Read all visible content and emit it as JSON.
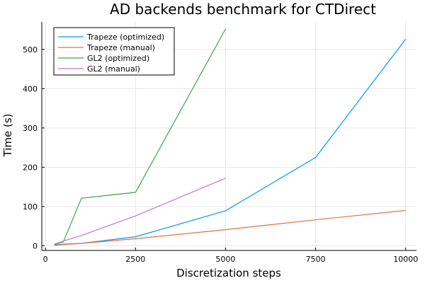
{
  "chart_data": {
    "type": "line",
    "title": "AD backends benchmark for CTDirect",
    "xlabel": "Discretization steps",
    "ylabel": "Time (s)",
    "xlim": [
      -100,
      10300
    ],
    "ylim": [
      -12,
      570
    ],
    "xticks": [
      0,
      2500,
      5000,
      7500,
      10000
    ],
    "yticks": [
      0,
      100,
      200,
      300,
      400,
      500
    ],
    "grid": true,
    "legend_position": "top-left",
    "series": [
      {
        "name": "Trapeze (optimized)",
        "color": "#009AFA",
        "x": [
          250,
          500,
          1000,
          2500,
          5000,
          7500,
          10000
        ],
        "y": [
          2,
          4,
          6,
          23,
          89,
          225,
          526
        ]
      },
      {
        "name": "Trapeze (manual)",
        "color": "#E36F47",
        "x": [
          250,
          500,
          1000,
          2500,
          5000,
          7500,
          10000
        ],
        "y": [
          1,
          3,
          6,
          18,
          41,
          66,
          90
        ]
      },
      {
        "name": "GL2 (optimized)",
        "color": "#3EA44E",
        "x": [
          250,
          500,
          1000,
          2500,
          5000
        ],
        "y": [
          3,
          10,
          121,
          136,
          552
        ]
      },
      {
        "name": "GL2 (manual)",
        "color": "#C371D2",
        "x": [
          250,
          500,
          1000,
          2500,
          5000
        ],
        "y": [
          4,
          12,
          26,
          76,
          172
        ]
      }
    ]
  }
}
